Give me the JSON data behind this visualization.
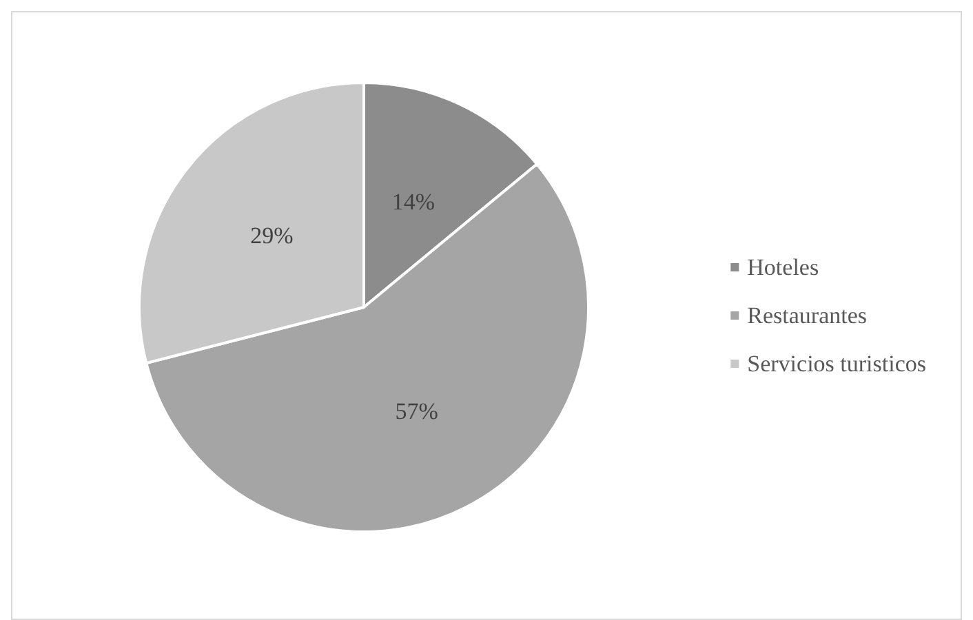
{
  "chart_data": {
    "type": "pie",
    "categories": [
      "Hoteles",
      "Restaurantes",
      "Servicios turisticos"
    ],
    "values": [
      14,
      57,
      29
    ],
    "colors": [
      "#8c8c8c",
      "#a5a5a5",
      "#c8c8c8"
    ],
    "value_labels": [
      "14%",
      "57%",
      "29%"
    ],
    "legend": "right"
  }
}
